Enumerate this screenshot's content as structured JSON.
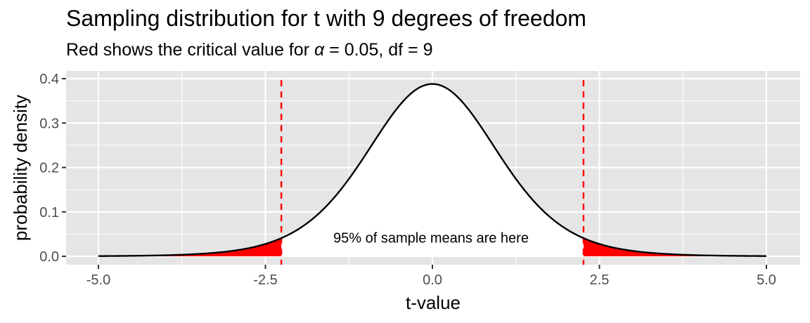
{
  "chart_data": {
    "type": "area",
    "title": "Sampling distribution for t with 9 degrees of freedom",
    "subtitle": {
      "prefix": "Red shows the critical value for ",
      "symbol": "α",
      "suffix": " = 0.05, df = 9"
    },
    "xlabel": "t-value",
    "ylabel": "probability density",
    "xlim": [
      -5.0,
      5.0
    ],
    "ylim": [
      0.0,
      0.4
    ],
    "x_ticks": [
      "-5.0",
      "-2.5",
      "0.0",
      "2.5",
      "5.0"
    ],
    "y_ticks": [
      "0.0",
      "0.1",
      "0.2",
      "0.3",
      "0.4"
    ],
    "grid": true,
    "series": [
      {
        "x": [
          -5.0,
          -4.5,
          -4.0,
          -3.5,
          -3.0,
          -2.5,
          -2.262,
          -2.0,
          -1.5,
          -1.0,
          -0.5,
          0.0,
          0.5,
          1.0,
          1.5,
          2.0,
          2.262,
          2.5,
          3.0,
          3.5,
          4.0,
          4.5,
          5.0
        ],
        "y": [
          0.0015,
          0.0027,
          0.0051,
          0.0098,
          0.0186,
          0.0346,
          0.0453,
          0.0611,
          0.1241,
          0.2304,
          0.3427,
          0.388,
          0.3427,
          0.2304,
          0.1241,
          0.0611,
          0.0453,
          0.0346,
          0.0186,
          0.0098,
          0.0051,
          0.0027,
          0.0015
        ]
      }
    ],
    "critical_values": [
      -2.262,
      2.262
    ],
    "annotation": {
      "text": "95% of sample means are here",
      "x": 0.0,
      "y": 0.05
    },
    "colors": {
      "panel": "#e5e5e5",
      "grid": "#ffffff",
      "curve": "#000000",
      "tail": "#ff0000",
      "center": "#ffffff",
      "critical_line": "#ff0000"
    }
  }
}
